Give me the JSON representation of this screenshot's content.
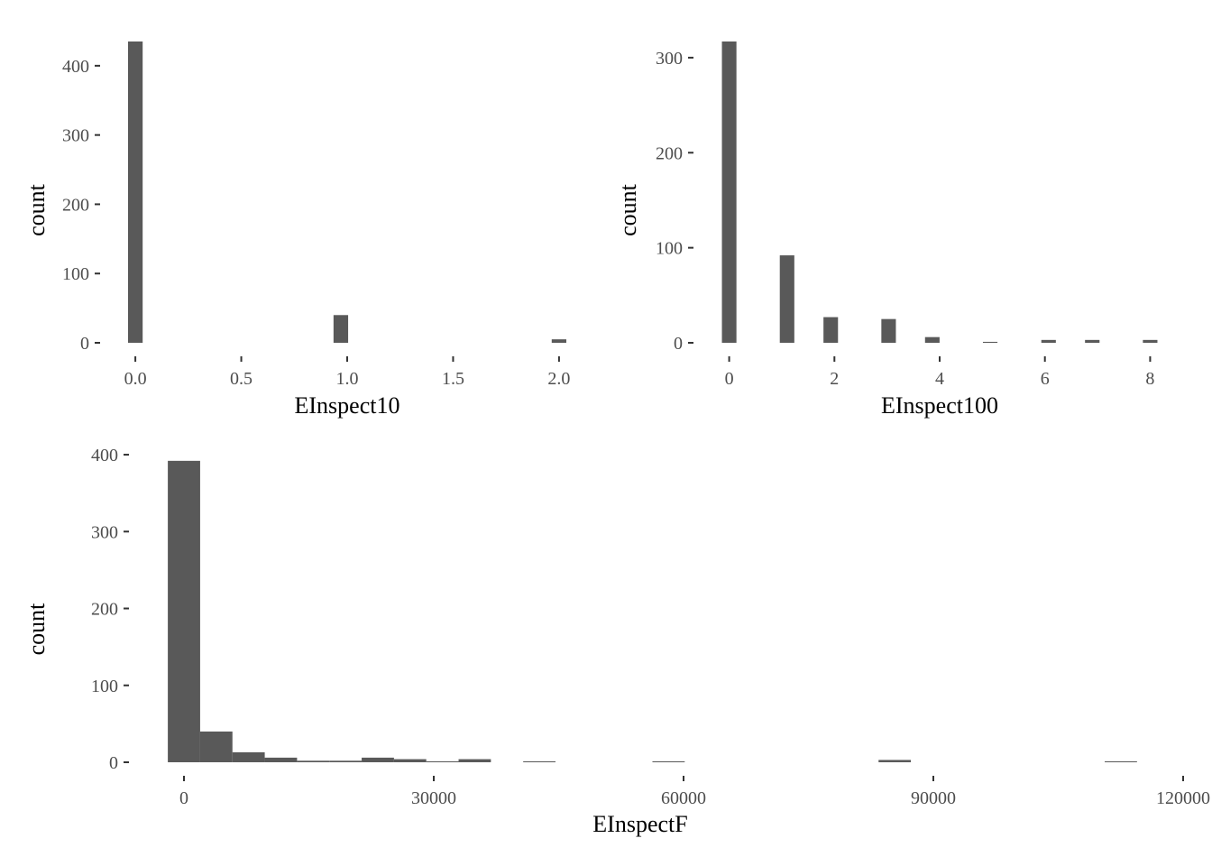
{
  "colors": {
    "bar": "#595959",
    "tick": "#333333",
    "tick_label": "#4d4d4d",
    "background": "#ffffff"
  },
  "chart_data": [
    {
      "type": "bar",
      "xlabel": "EInspect10",
      "ylabel": "count",
      "grid": false,
      "xlim": [
        -0.06,
        2.06
      ],
      "ylim": [
        0,
        435
      ],
      "xticks": [
        0.0,
        0.5,
        1.0,
        1.5,
        2.0
      ],
      "xtick_labels": [
        "0.0",
        "0.5",
        "1.0",
        "1.5",
        "2.0"
      ],
      "yticks": [
        0,
        100,
        200,
        300,
        400
      ],
      "ytick_labels": [
        "0",
        "100",
        "200",
        "300",
        "400"
      ],
      "bin_width": 0.069,
      "bars": [
        {
          "x": 0.0,
          "count": 435
        },
        {
          "x": 0.97,
          "count": 40
        },
        {
          "x": 2.0,
          "count": 5
        }
      ]
    },
    {
      "type": "bar",
      "xlabel": "EInspect100",
      "ylabel": "count",
      "grid": false,
      "xlim": [
        -0.25,
        8.25
      ],
      "ylim": [
        0,
        317
      ],
      "xticks": [
        0,
        2,
        4,
        6,
        8
      ],
      "xtick_labels": [
        "0",
        "2",
        "4",
        "6",
        "8"
      ],
      "yticks": [
        0,
        100,
        200,
        300
      ],
      "ytick_labels": [
        "0",
        "100",
        "200",
        "300"
      ],
      "bin_width": 0.276,
      "bars": [
        {
          "x": 0.0,
          "count": 317
        },
        {
          "x": 1.1,
          "count": 92
        },
        {
          "x": 1.93,
          "count": 27
        },
        {
          "x": 3.03,
          "count": 25
        },
        {
          "x": 3.86,
          "count": 6
        },
        {
          "x": 4.96,
          "count": 1
        },
        {
          "x": 6.07,
          "count": 3
        },
        {
          "x": 6.9,
          "count": 3
        },
        {
          "x": 8.0,
          "count": 3
        }
      ]
    },
    {
      "type": "bar",
      "xlabel": "EInspectF",
      "ylabel": "count",
      "grid": false,
      "xlim": [
        -3900,
        120000
      ],
      "ylim": [
        0,
        393
      ],
      "xticks": [
        0,
        30000,
        60000,
        90000,
        120000
      ],
      "xtick_labels": [
        "0",
        "30000",
        "60000",
        "90000",
        "120000"
      ],
      "yticks": [
        0,
        100,
        200,
        300,
        400
      ],
      "ytick_labels": [
        "0",
        "100",
        "200",
        "300",
        "400"
      ],
      "bin_width": 3880,
      "bars": [
        {
          "x": 0,
          "count": 392
        },
        {
          "x": 3880,
          "count": 40
        },
        {
          "x": 7760,
          "count": 13
        },
        {
          "x": 11640,
          "count": 6
        },
        {
          "x": 15520,
          "count": 2
        },
        {
          "x": 19400,
          "count": 2
        },
        {
          "x": 23280,
          "count": 6
        },
        {
          "x": 27160,
          "count": 4
        },
        {
          "x": 31040,
          "count": 1
        },
        {
          "x": 34920,
          "count": 4
        },
        {
          "x": 42680,
          "count": 1
        },
        {
          "x": 58200,
          "count": 1
        },
        {
          "x": 85360,
          "count": 3
        },
        {
          "x": 112520,
          "count": 1
        }
      ]
    }
  ]
}
